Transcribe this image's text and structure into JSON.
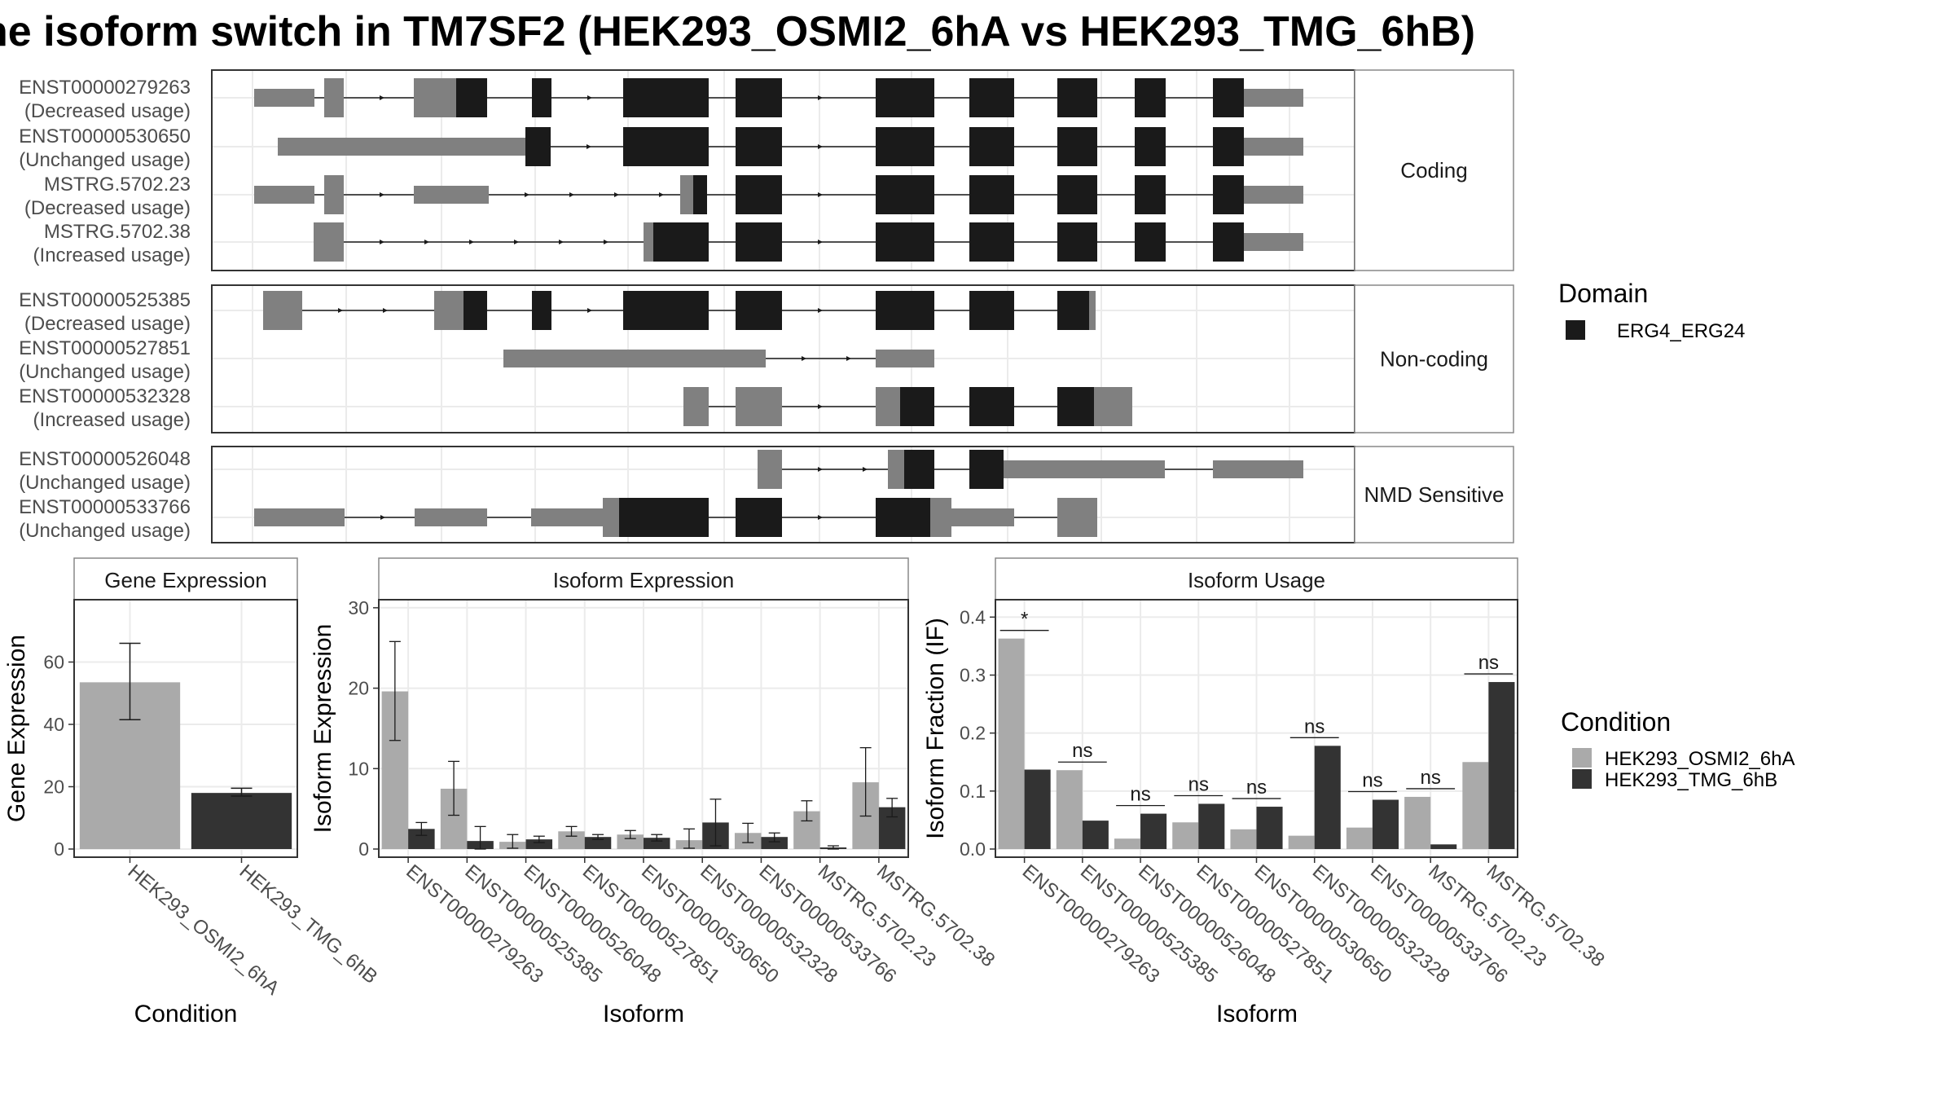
{
  "title": "he isoform switch in TM7SF2 (HEK293_OSMI2_6hA vs HEK293_TMG_6hB)",
  "colors": {
    "utr": "#808080",
    "cds": "#1a1a1a",
    "cond_a": "#aaaaaa",
    "cond_b": "#333333",
    "grid": "#ebebeb",
    "strip_border": "#888888"
  },
  "structure_panels": [
    {
      "facet": "Coding",
      "transcripts": [
        {
          "id": "ENST00000279263",
          "usage": "(Decreased usage)"
        },
        {
          "id": "ENST00000530650",
          "usage": "(Unchanged usage)"
        },
        {
          "id": "MSTRG.5702.23",
          "usage": "(Decreased usage)"
        },
        {
          "id": "MSTRG.5702.38",
          "usage": "(Increased usage)"
        }
      ]
    },
    {
      "facet": "Non-coding",
      "transcripts": [
        {
          "id": "ENST00000525385",
          "usage": "(Decreased usage)"
        },
        {
          "id": "ENST00000527851",
          "usage": "(Unchanged usage)"
        },
        {
          "id": "ENST00000532328",
          "usage": "(Increased usage)"
        }
      ]
    },
    {
      "facet": "NMD Sensitive",
      "transcripts": [
        {
          "id": "ENST00000526048",
          "usage": "(Unchanged usage)"
        },
        {
          "id": "ENST00000533766",
          "usage": "(Unchanged usage)"
        }
      ]
    }
  ],
  "domain_legend": {
    "title": "Domain",
    "items": [
      "ERG4_ERG24"
    ]
  },
  "condition_legend": {
    "title": "Condition",
    "items": [
      "HEK293_OSMI2_6hA",
      "HEK293_TMG_6hB"
    ]
  },
  "chart_data": [
    {
      "type": "bar",
      "title": "Gene Expression",
      "xlabel": "Condition",
      "ylabel": "Gene Expression",
      "ylim": [
        0,
        80
      ],
      "yticks": [
        0,
        20,
        40,
        60
      ],
      "categories": [
        "HEK293_OSMI2_6hA",
        "HEK293_TMG_6hB"
      ],
      "values": [
        53.5,
        18
      ],
      "errors": [
        [
          41.5,
          66
        ],
        [
          17,
          19.5
        ]
      ]
    },
    {
      "type": "bar",
      "title": "Isoform Expression",
      "xlabel": "Isoform",
      "ylabel": "Isoform Expression",
      "ylim": [
        0,
        31
      ],
      "yticks": [
        0,
        10,
        20,
        30
      ],
      "categories": [
        "ENST00000279263",
        "ENST00000525385",
        "ENST00000526048",
        "ENST00000527851",
        "ENST00000530650",
        "ENST00000532328",
        "ENST00000533766",
        "MSTRG.5702.23",
        "MSTRG.5702.38"
      ],
      "series": [
        {
          "name": "HEK293_OSMI2_6hA",
          "values": [
            19.6,
            7.5,
            0.9,
            2.2,
            1.8,
            1.1,
            2,
            4.7,
            8.3
          ],
          "errors": [
            [
              13.5,
              25.8
            ],
            [
              4.2,
              10.9
            ],
            [
              0.1,
              1.8
            ],
            [
              1.6,
              2.8
            ],
            [
              1.3,
              2.3
            ],
            [
              0.1,
              2.5
            ],
            [
              0.8,
              3.2
            ],
            [
              3.5,
              6.0
            ],
            [
              4.1,
              12.6
            ]
          ]
        },
        {
          "name": "HEK293_TMG_6hB",
          "values": [
            2.5,
            1,
            1.2,
            1.5,
            1.4,
            3.3,
            1.5,
            0.2,
            5.2
          ],
          "errors": [
            [
              1.7,
              3.3
            ],
            [
              0,
              2.8
            ],
            [
              0.8,
              1.6
            ],
            [
              1.2,
              1.8
            ],
            [
              1.0,
              1.8
            ],
            [
              0.4,
              6.2
            ],
            [
              0.9,
              2.0
            ],
            [
              0,
              0.4
            ],
            [
              4.0,
              6.3
            ]
          ]
        }
      ]
    },
    {
      "type": "bar",
      "title": "Isoform Usage",
      "xlabel": "Isoform",
      "ylabel": "Isoform Fraction (IF)",
      "ylim": [
        0,
        0.43
      ],
      "yticks": [
        0.0,
        0.1,
        0.2,
        0.3,
        0.4
      ],
      "categories": [
        "ENST00000279263",
        "ENST00000525385",
        "ENST00000526048",
        "ENST00000527851",
        "ENST00000530650",
        "ENST00000532328",
        "ENST00000533766",
        "MSTRG.5702.23",
        "MSTRG.5702.38"
      ],
      "series": [
        {
          "name": "HEK293_OSMI2_6hA",
          "values": [
            0.363,
            0.136,
            0.018,
            0.046,
            0.034,
            0.023,
            0.037,
            0.09,
            0.15
          ]
        },
        {
          "name": "HEK293_TMG_6hB",
          "values": [
            0.137,
            0.049,
            0.061,
            0.078,
            0.073,
            0.178,
            0.085,
            0.008,
            0.288
          ]
        }
      ],
      "significance": [
        "*",
        "ns",
        "ns",
        "ns",
        "ns",
        "ns",
        "ns",
        "ns",
        "ns"
      ]
    }
  ]
}
